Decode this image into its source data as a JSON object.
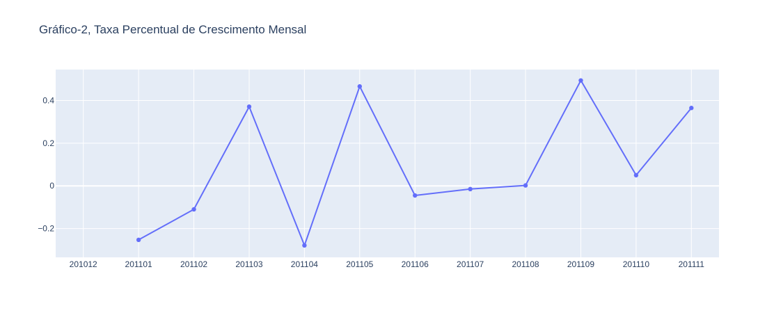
{
  "chart_data": {
    "type": "line",
    "title": "Gráfico-2, Taxa Percentual de Crescimento Mensal",
    "xlabel": "",
    "ylabel": "",
    "categories": [
      "201012",
      "201101",
      "201102",
      "201103",
      "201104",
      "201105",
      "201106",
      "201107",
      "201108",
      "201109",
      "201110",
      "201111"
    ],
    "series": [
      {
        "values": [
          null,
          -0.253,
          -0.11,
          0.371,
          -0.279,
          0.466,
          -0.045,
          -0.015,
          0.002,
          0.494,
          0.05,
          0.365
        ]
      }
    ],
    "ylim": [
      -0.335,
      0.545
    ],
    "yticks": [
      -0.2,
      0,
      0.2,
      0.4
    ],
    "ytick_labels": [
      "−0.2",
      "0",
      "0.2",
      "0.4"
    ],
    "grid": true,
    "legend": "none",
    "colors": {
      "line": "#636efa",
      "plot_bg": "#e5ecf6",
      "grid": "#ffffff",
      "text": "#2a3f5f"
    }
  }
}
